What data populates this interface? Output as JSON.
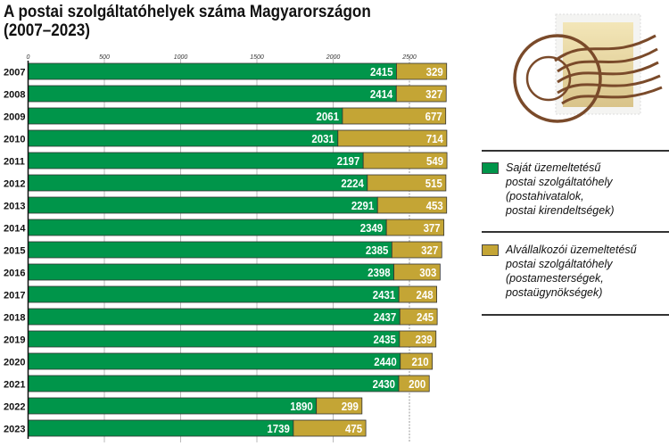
{
  "chart_data": {
    "type": "bar",
    "stacked": true,
    "orientation": "horizontal",
    "title": "A postai szolgáltatóhelyek száma Magyarországon\n(2007–2023)",
    "categories": [
      "2007",
      "2008",
      "2009",
      "2010",
      "2011",
      "2012",
      "2013",
      "2014",
      "2015",
      "2016",
      "2017",
      "2018",
      "2019",
      "2020",
      "2021",
      "2022",
      "2023"
    ],
    "series": [
      {
        "name": "Saját üzemeltetésű\npostai szolgáltatóhely\n(postahivatalok,\npostai kirendeltségek)",
        "color": "#00954a",
        "values": [
          2415,
          2414,
          2061,
          2031,
          2197,
          2224,
          2291,
          2349,
          2385,
          2398,
          2431,
          2437,
          2435,
          2440,
          2430,
          1890,
          1739
        ]
      },
      {
        "name": "Alvállalkozói üzemeltetésű\npostai szolgáltatóhely\n(postamesterségek,\npostaügynökségek)",
        "color": "#c4a535",
        "values": [
          329,
          327,
          677,
          714,
          549,
          515,
          453,
          377,
          327,
          303,
          248,
          245,
          239,
          210,
          200,
          299,
          475
        ]
      }
    ],
    "xticks": [
      "0",
      "500",
      "1000",
      "1500",
      "2000",
      "2500"
    ],
    "xlim": [
      0,
      2800
    ],
    "legend": "right"
  }
}
